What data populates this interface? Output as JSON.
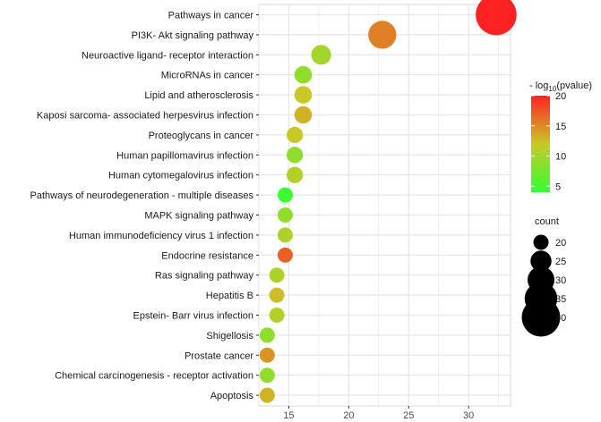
{
  "chart_data": {
    "type": "scatter",
    "title": "",
    "xlabel": "",
    "ylabel": "",
    "xlim": [
      12.5,
      33.5
    ],
    "x_ticks": [
      15,
      20,
      25,
      30
    ],
    "grid": true,
    "categories": [
      "Pathways in cancer",
      "PI3K- Akt signaling pathway",
      "Neuroactive ligand- receptor interaction",
      "MicroRNAs in cancer",
      "Lipid and atherosclerosis",
      "Kaposi sarcoma- associated herpesvirus infection",
      "Proteoglycans in cancer",
      "Human papillomavirus infection",
      "Human cytomegalovirus infection",
      "Pathways of neurodegeneration -  multiple diseases",
      "MAPK signaling pathway",
      "Human immunodeficiency virus 1 infection",
      "Endocrine resistance",
      "Ras signaling pathway",
      "Hepatitis B",
      "Epstein- Barr virus infection",
      "Shigellosis",
      "Prostate cancer",
      "Chemical carcinogenesis -  receptor activation",
      "Apoptosis"
    ],
    "points": [
      {
        "x": 32.3,
        "count": 42,
        "neglog10p": 20.0
      },
      {
        "x": 22.8,
        "count": 31,
        "neglog10p": 15.5
      },
      {
        "x": 17.7,
        "count": 24,
        "neglog10p": 10.0
      },
      {
        "x": 16.2,
        "count": 22,
        "neglog10p": 9.0
      },
      {
        "x": 16.2,
        "count": 22,
        "neglog10p": 12.0
      },
      {
        "x": 16.2,
        "count": 22,
        "neglog10p": 13.0
      },
      {
        "x": 15.5,
        "count": 21,
        "neglog10p": 12.0
      },
      {
        "x": 15.5,
        "count": 21,
        "neglog10p": 9.0
      },
      {
        "x": 15.5,
        "count": 21,
        "neglog10p": 11.0
      },
      {
        "x": 14.7,
        "count": 20,
        "neglog10p": 4.5
      },
      {
        "x": 14.7,
        "count": 20,
        "neglog10p": 9.0
      },
      {
        "x": 14.7,
        "count": 20,
        "neglog10p": 10.5
      },
      {
        "x": 14.7,
        "count": 20,
        "neglog10p": 17.0
      },
      {
        "x": 14.0,
        "count": 19,
        "neglog10p": 10.5
      },
      {
        "x": 14.0,
        "count": 19,
        "neglog10p": 12.5
      },
      {
        "x": 14.0,
        "count": 19,
        "neglog10p": 11.0
      },
      {
        "x": 13.2,
        "count": 18,
        "neglog10p": 9.0
      },
      {
        "x": 13.2,
        "count": 18,
        "neglog10p": 14.5
      },
      {
        "x": 13.2,
        "count": 18,
        "neglog10p": 9.0
      },
      {
        "x": 13.2,
        "count": 18,
        "neglog10p": 13.0
      }
    ],
    "color_legend": {
      "title_prefix": "- log",
      "title_sub": "10",
      "title_suffix": "(pvalue)",
      "min": 4,
      "max": 20,
      "ticks": [
        5,
        10,
        15,
        20
      ],
      "low_color": "#33ff33",
      "mid_color": "#c8c828",
      "high_color": "#ff2222"
    },
    "size_legend": {
      "title": "count",
      "values": [
        20,
        25,
        30,
        35,
        40
      ]
    },
    "size_range": [
      17,
      43
    ]
  }
}
